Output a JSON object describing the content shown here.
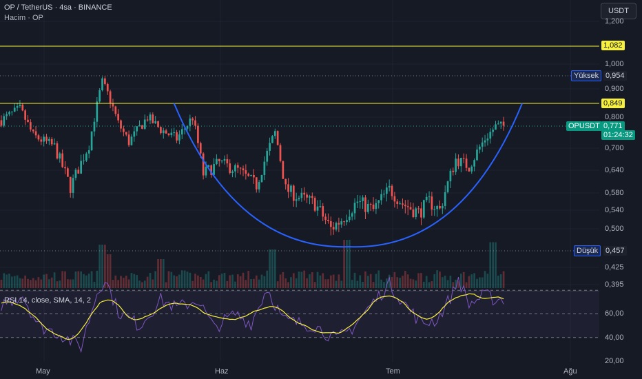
{
  "header": {
    "title": "OP / TetherUS · 4sa · BINANCE",
    "volume_label": "Hacim · OP",
    "currency": "USDT"
  },
  "price_axis": {
    "ticks": [
      "1,200",
      "1,000",
      "0,900",
      "0,800",
      "0,700",
      "0,640",
      "0,580",
      "0,540",
      "0,500",
      "0,425",
      "0,395"
    ]
  },
  "levels": {
    "resistance_top": "1,082",
    "resistance_mid": "0,849",
    "high_label": "Yüksek",
    "high_value": "0,954",
    "low_label": "Düşük",
    "low_value": "0,457",
    "symbol": "OPUSDT",
    "last_price": "0,771",
    "countdown": "01:24:32"
  },
  "rsi": {
    "label": "RSI 14, close, SMA, 14, 2",
    "ticks": [
      "60,00",
      "40,00",
      "20,00"
    ],
    "upper": 70,
    "lower": 30
  },
  "time_axis": {
    "labels": [
      "May",
      "Haz",
      "Tem",
      "Ağu"
    ]
  },
  "colors": {
    "background": "#161a25",
    "up": "#26a69a",
    "down": "#ef5350",
    "cup_line": "#2962ff",
    "level_line": "#f7f13c",
    "rsi_line": "#7e57c2",
    "rsi_ma": "#f7f13c"
  },
  "chart_data": {
    "type": "candlestick",
    "path_points": [
      [
        0,
        0.79
      ],
      [
        7,
        0.83
      ],
      [
        12,
        0.74
      ],
      [
        20,
        0.705
      ],
      [
        26,
        0.595
      ],
      [
        33,
        0.71
      ],
      [
        38,
        0.93
      ],
      [
        41,
        0.86
      ],
      [
        44,
        0.78
      ],
      [
        48,
        0.72
      ],
      [
        55,
        0.8
      ],
      [
        60,
        0.76
      ],
      [
        66,
        0.73
      ],
      [
        72,
        0.8
      ],
      [
        76,
        0.63
      ],
      [
        82,
        0.66
      ],
      [
        89,
        0.64
      ],
      [
        96,
        0.6
      ],
      [
        103,
        0.75
      ],
      [
        107,
        0.59
      ],
      [
        112,
        0.57
      ],
      [
        118,
        0.555
      ],
      [
        124,
        0.5
      ],
      [
        128,
        0.52
      ],
      [
        134,
        0.56
      ],
      [
        140,
        0.54
      ],
      [
        146,
        0.59
      ],
      [
        151,
        0.555
      ],
      [
        157,
        0.535
      ],
      [
        161,
        0.56
      ],
      [
        165,
        0.54
      ],
      [
        171,
        0.67
      ],
      [
        176,
        0.65
      ],
      [
        182,
        0.73
      ],
      [
        186,
        0.77
      ],
      [
        190,
        0.771
      ]
    ],
    "cup": {
      "left": [
        65,
        0.849
      ],
      "bottom": [
        131,
        0.465
      ],
      "right": [
        196,
        0.849
      ]
    },
    "volume_spikes": [
      [
        38,
        0.9
      ],
      [
        40,
        0.7
      ],
      [
        60,
        0.6
      ],
      [
        102,
        0.8
      ],
      [
        130,
        1.0
      ],
      [
        185,
        0.95
      ]
    ],
    "rsi_points": [
      [
        0,
        58
      ],
      [
        8,
        66
      ],
      [
        14,
        40
      ],
      [
        22,
        33
      ],
      [
        30,
        22
      ],
      [
        36,
        68
      ],
      [
        39,
        80
      ],
      [
        44,
        52
      ],
      [
        52,
        40
      ],
      [
        60,
        62
      ],
      [
        66,
        55
      ],
      [
        74,
        62
      ],
      [
        80,
        38
      ],
      [
        88,
        50
      ],
      [
        94,
        42
      ],
      [
        100,
        72
      ],
      [
        106,
        45
      ],
      [
        112,
        42
      ],
      [
        118,
        40
      ],
      [
        126,
        28
      ],
      [
        132,
        38
      ],
      [
        140,
        60
      ],
      [
        146,
        75
      ],
      [
        152,
        58
      ],
      [
        158,
        42
      ],
      [
        164,
        45
      ],
      [
        170,
        68
      ],
      [
        172,
        80
      ],
      [
        176,
        58
      ],
      [
        182,
        66
      ],
      [
        186,
        62
      ],
      [
        190,
        63
      ]
    ]
  }
}
